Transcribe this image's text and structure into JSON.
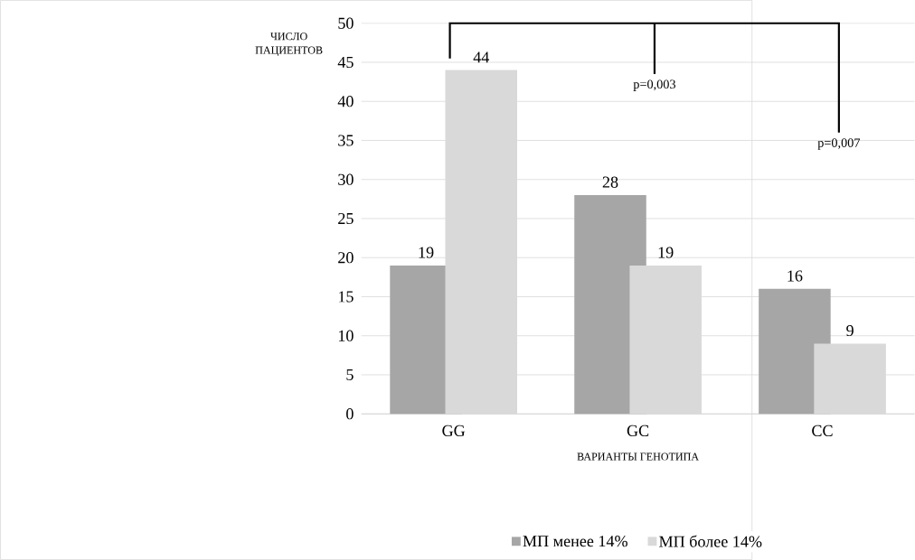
{
  "chart_data": {
    "type": "bar",
    "xlabel": "ВАРИАНТЫ ГЕНОТИПА",
    "ylabel": "ЧИСЛО ПАЦИЕНТОВ",
    "categories": [
      "GG",
      "GC",
      "CC"
    ],
    "series": [
      {
        "name": "МП менее 14%",
        "color": "#a6a6a6",
        "values": [
          19,
          28,
          16
        ]
      },
      {
        "name": "МП более 14%",
        "color": "#d9d9d9",
        "values": [
          44,
          19,
          9
        ]
      }
    ],
    "ylim": [
      0,
      50
    ],
    "yticks": [
      0,
      5,
      10,
      15,
      20,
      25,
      30,
      35,
      40,
      45,
      50
    ],
    "grid": "y",
    "legend": "bottom",
    "data_labels": true,
    "annotations": [
      "p=0,003",
      "p=0,007"
    ]
  }
}
